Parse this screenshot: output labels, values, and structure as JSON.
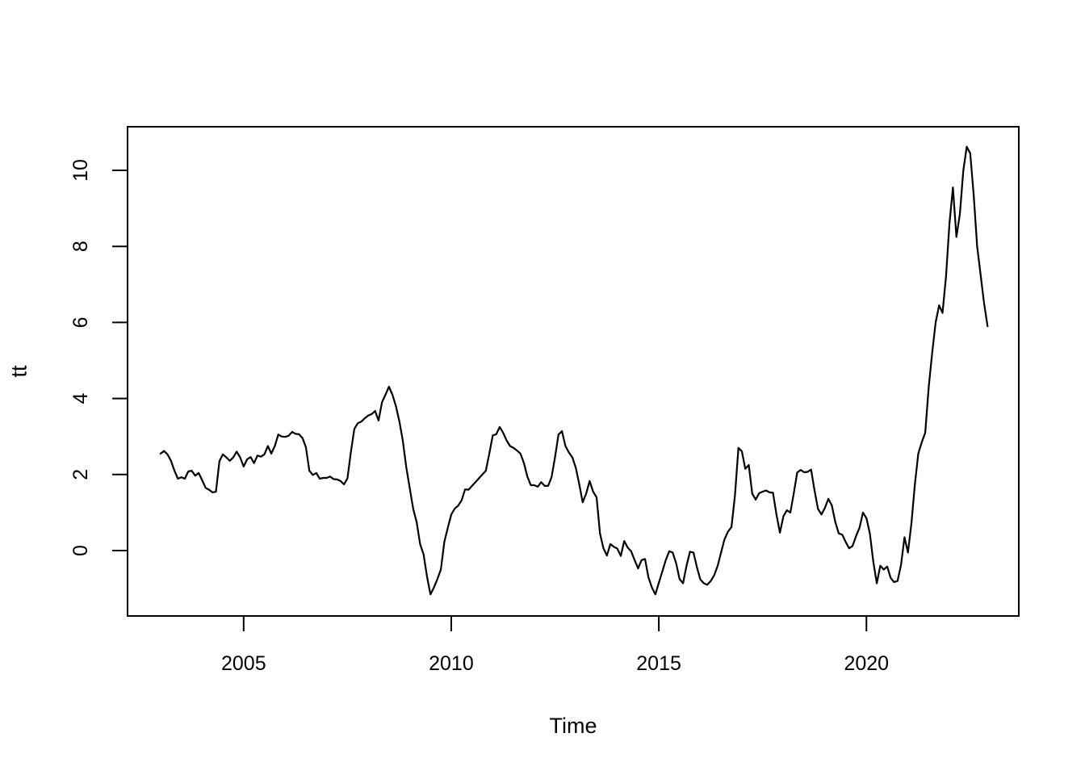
{
  "chart_data": {
    "type": "line",
    "title": "",
    "xlabel": "Time",
    "ylabel": "tt",
    "grid": false,
    "legend": "none",
    "background": "#ffffff",
    "line_color": "#000000",
    "x_tick_labels": [
      "2005",
      "2010",
      "2015",
      "2020"
    ],
    "x_tick_years": [
      2005,
      2010,
      2015,
      2020
    ],
    "y_tick_labels": [
      "0",
      "2",
      "4",
      "6",
      "8",
      "10"
    ],
    "y_ticks": [
      0,
      2,
      4,
      6,
      8,
      10
    ],
    "x_start_year": 2003,
    "x_start_month": 1,
    "frequency": 12,
    "x_range": [
      2003.0,
      2022.917
    ],
    "y_data_range": [
      -1.15,
      10.62
    ],
    "series": [
      {
        "name": "tt",
        "values": [
          2.55,
          2.62,
          2.53,
          2.36,
          2.1,
          1.89,
          1.93,
          1.89,
          2.08,
          2.1,
          1.97,
          2.04,
          1.85,
          1.65,
          1.6,
          1.53,
          1.55,
          2.35,
          2.53,
          2.45,
          2.36,
          2.45,
          2.6,
          2.45,
          2.21,
          2.4,
          2.46,
          2.3,
          2.5,
          2.47,
          2.53,
          2.75,
          2.55,
          2.75,
          3.05,
          3.0,
          2.99,
          3.02,
          3.12,
          3.07,
          3.06,
          2.96,
          2.72,
          2.1,
          1.99,
          2.04,
          1.89,
          1.91,
          1.91,
          1.95,
          1.88,
          1.87,
          1.83,
          1.74,
          1.9,
          2.6,
          3.2,
          3.35,
          3.39,
          3.48,
          3.55,
          3.59,
          3.67,
          3.42,
          3.9,
          4.1,
          4.31,
          4.1,
          3.8,
          3.4,
          2.9,
          2.2,
          1.65,
          1.1,
          0.75,
          0.17,
          -0.1,
          -0.68,
          -1.15,
          -0.97,
          -0.75,
          -0.5,
          0.23,
          0.6,
          0.95,
          1.1,
          1.18,
          1.32,
          1.61,
          1.6,
          1.7,
          1.8,
          1.9,
          2.0,
          2.1,
          2.55,
          3.03,
          3.06,
          3.25,
          3.1,
          2.9,
          2.75,
          2.7,
          2.63,
          2.55,
          2.3,
          1.95,
          1.72,
          1.72,
          1.68,
          1.8,
          1.7,
          1.7,
          1.93,
          2.45,
          3.05,
          3.14,
          2.75,
          2.58,
          2.45,
          2.18,
          1.75,
          1.27,
          1.5,
          1.83,
          1.55,
          1.4,
          0.45,
          0.06,
          -0.13,
          0.17,
          0.1,
          0.05,
          -0.14,
          0.25,
          0.08,
          -0.02,
          -0.25,
          -0.47,
          -0.25,
          -0.22,
          -0.7,
          -0.97,
          -1.15,
          -0.85,
          -0.55,
          -0.25,
          -0.02,
          -0.05,
          -0.33,
          -0.75,
          -0.86,
          -0.4,
          -0.03,
          -0.05,
          -0.43,
          -0.76,
          -0.86,
          -0.9,
          -0.8,
          -0.65,
          -0.4,
          -0.05,
          0.3,
          0.5,
          0.62,
          1.45,
          2.7,
          2.61,
          2.15,
          2.25,
          1.5,
          1.34,
          1.51,
          1.55,
          1.58,
          1.53,
          1.52,
          0.95,
          0.47,
          0.9,
          1.06,
          1.0,
          1.5,
          2.05,
          2.12,
          2.06,
          2.07,
          2.13,
          1.58,
          1.1,
          0.95,
          1.12,
          1.36,
          1.19,
          0.75,
          0.45,
          0.42,
          0.23,
          0.06,
          0.12,
          0.38,
          0.6,
          1.0,
          0.85,
          0.45,
          -0.3,
          -0.86,
          -0.4,
          -0.5,
          -0.42,
          -0.72,
          -0.83,
          -0.8,
          -0.38,
          0.35,
          -0.05,
          0.72,
          1.75,
          2.55,
          2.85,
          3.1,
          4.3,
          5.2,
          6.0,
          6.45,
          6.25,
          7.2,
          8.6,
          9.55,
          8.25,
          8.85,
          10.0,
          10.62,
          10.45,
          9.36,
          8.0,
          7.25,
          6.5,
          5.9
        ]
      }
    ]
  }
}
